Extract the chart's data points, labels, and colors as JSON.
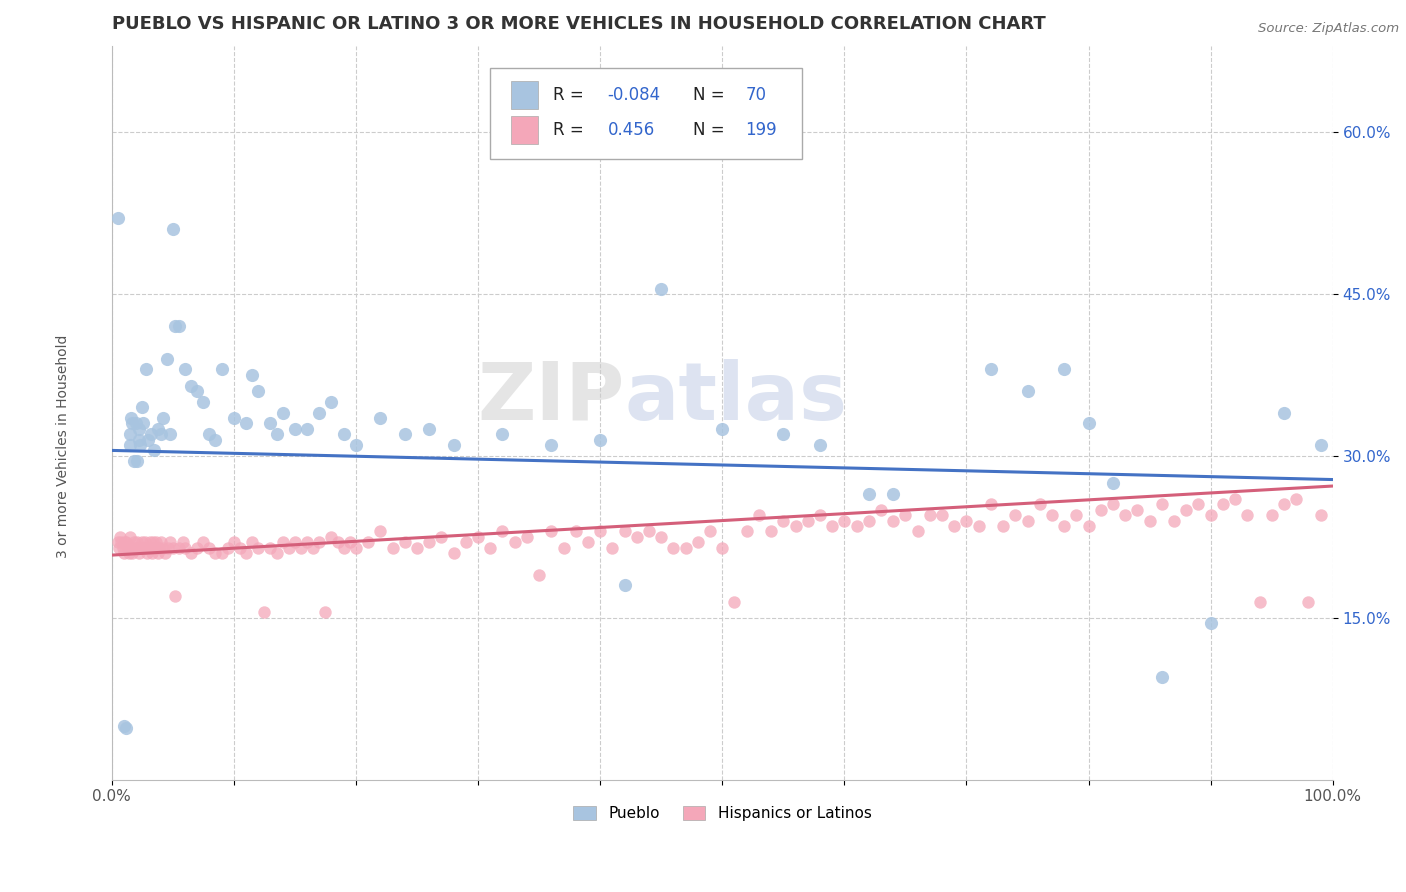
{
  "title": "PUEBLO VS HISPANIC OR LATINO 3 OR MORE VEHICLES IN HOUSEHOLD CORRELATION CHART",
  "source": "Source: ZipAtlas.com",
  "ylabel": "3 or more Vehicles in Household",
  "xlim": [
    0,
    1.0
  ],
  "ylim": [
    0.0,
    0.68
  ],
  "ytick_positions": [
    0.15,
    0.3,
    0.45,
    0.6
  ],
  "yticklabels": [
    "15.0%",
    "30.0%",
    "45.0%",
    "60.0%"
  ],
  "watermark_zip": "ZIP",
  "watermark_atlas": "atlas",
  "pueblo_color": "#a8c4e0",
  "hispanic_color": "#f4a7b9",
  "pueblo_line_color": "#4472c4",
  "hispanic_line_color": "#d45f7a",
  "blue_text_color": "#3366cc",
  "pueblo_scatter": [
    [
      0.005,
      0.52
    ],
    [
      0.01,
      0.05
    ],
    [
      0.012,
      0.048
    ],
    [
      0.015,
      0.32
    ],
    [
      0.015,
      0.31
    ],
    [
      0.016,
      0.335
    ],
    [
      0.017,
      0.33
    ],
    [
      0.018,
      0.295
    ],
    [
      0.02,
      0.33
    ],
    [
      0.021,
      0.295
    ],
    [
      0.022,
      0.315
    ],
    [
      0.022,
      0.325
    ],
    [
      0.023,
      0.31
    ],
    [
      0.025,
      0.345
    ],
    [
      0.026,
      0.33
    ],
    [
      0.028,
      0.38
    ],
    [
      0.03,
      0.315
    ],
    [
      0.032,
      0.32
    ],
    [
      0.035,
      0.305
    ],
    [
      0.038,
      0.325
    ],
    [
      0.04,
      0.32
    ],
    [
      0.042,
      0.335
    ],
    [
      0.045,
      0.39
    ],
    [
      0.048,
      0.32
    ],
    [
      0.05,
      0.51
    ],
    [
      0.052,
      0.42
    ],
    [
      0.055,
      0.42
    ],
    [
      0.06,
      0.38
    ],
    [
      0.065,
      0.365
    ],
    [
      0.07,
      0.36
    ],
    [
      0.075,
      0.35
    ],
    [
      0.08,
      0.32
    ],
    [
      0.085,
      0.315
    ],
    [
      0.09,
      0.38
    ],
    [
      0.1,
      0.335
    ],
    [
      0.11,
      0.33
    ],
    [
      0.115,
      0.375
    ],
    [
      0.12,
      0.36
    ],
    [
      0.13,
      0.33
    ],
    [
      0.135,
      0.32
    ],
    [
      0.14,
      0.34
    ],
    [
      0.15,
      0.325
    ],
    [
      0.16,
      0.325
    ],
    [
      0.17,
      0.34
    ],
    [
      0.18,
      0.35
    ],
    [
      0.19,
      0.32
    ],
    [
      0.2,
      0.31
    ],
    [
      0.22,
      0.335
    ],
    [
      0.24,
      0.32
    ],
    [
      0.26,
      0.325
    ],
    [
      0.28,
      0.31
    ],
    [
      0.32,
      0.32
    ],
    [
      0.36,
      0.31
    ],
    [
      0.4,
      0.315
    ],
    [
      0.42,
      0.18
    ],
    [
      0.45,
      0.455
    ],
    [
      0.5,
      0.325
    ],
    [
      0.55,
      0.32
    ],
    [
      0.58,
      0.31
    ],
    [
      0.62,
      0.265
    ],
    [
      0.64,
      0.265
    ],
    [
      0.72,
      0.38
    ],
    [
      0.75,
      0.36
    ],
    [
      0.78,
      0.38
    ],
    [
      0.8,
      0.33
    ],
    [
      0.82,
      0.275
    ],
    [
      0.86,
      0.095
    ],
    [
      0.9,
      0.145
    ],
    [
      0.96,
      0.34
    ],
    [
      0.99,
      0.31
    ]
  ],
  "hispanic_scatter": [
    [
      0.005,
      0.22
    ],
    [
      0.006,
      0.215
    ],
    [
      0.007,
      0.225
    ],
    [
      0.008,
      0.22
    ],
    [
      0.009,
      0.215
    ],
    [
      0.01,
      0.21
    ],
    [
      0.011,
      0.22
    ],
    [
      0.012,
      0.22
    ],
    [
      0.013,
      0.215
    ],
    [
      0.014,
      0.21
    ],
    [
      0.015,
      0.225
    ],
    [
      0.016,
      0.215
    ],
    [
      0.017,
      0.21
    ],
    [
      0.018,
      0.22
    ],
    [
      0.019,
      0.215
    ],
    [
      0.02,
      0.215
    ],
    [
      0.021,
      0.22
    ],
    [
      0.022,
      0.21
    ],
    [
      0.023,
      0.215
    ],
    [
      0.024,
      0.215
    ],
    [
      0.025,
      0.22
    ],
    [
      0.026,
      0.215
    ],
    [
      0.027,
      0.22
    ],
    [
      0.028,
      0.215
    ],
    [
      0.029,
      0.21
    ],
    [
      0.03,
      0.215
    ],
    [
      0.031,
      0.22
    ],
    [
      0.032,
      0.215
    ],
    [
      0.033,
      0.21
    ],
    [
      0.034,
      0.22
    ],
    [
      0.035,
      0.215
    ],
    [
      0.036,
      0.22
    ],
    [
      0.037,
      0.215
    ],
    [
      0.038,
      0.21
    ],
    [
      0.039,
      0.215
    ],
    [
      0.04,
      0.22
    ],
    [
      0.042,
      0.215
    ],
    [
      0.044,
      0.21
    ],
    [
      0.046,
      0.215
    ],
    [
      0.048,
      0.22
    ],
    [
      0.05,
      0.215
    ],
    [
      0.052,
      0.17
    ],
    [
      0.055,
      0.215
    ],
    [
      0.058,
      0.22
    ],
    [
      0.06,
      0.215
    ],
    [
      0.065,
      0.21
    ],
    [
      0.07,
      0.215
    ],
    [
      0.075,
      0.22
    ],
    [
      0.08,
      0.215
    ],
    [
      0.085,
      0.21
    ],
    [
      0.09,
      0.21
    ],
    [
      0.095,
      0.215
    ],
    [
      0.1,
      0.22
    ],
    [
      0.105,
      0.215
    ],
    [
      0.11,
      0.21
    ],
    [
      0.115,
      0.22
    ],
    [
      0.12,
      0.215
    ],
    [
      0.125,
      0.155
    ],
    [
      0.13,
      0.215
    ],
    [
      0.135,
      0.21
    ],
    [
      0.14,
      0.22
    ],
    [
      0.145,
      0.215
    ],
    [
      0.15,
      0.22
    ],
    [
      0.155,
      0.215
    ],
    [
      0.16,
      0.22
    ],
    [
      0.165,
      0.215
    ],
    [
      0.17,
      0.22
    ],
    [
      0.175,
      0.155
    ],
    [
      0.18,
      0.225
    ],
    [
      0.185,
      0.22
    ],
    [
      0.19,
      0.215
    ],
    [
      0.195,
      0.22
    ],
    [
      0.2,
      0.215
    ],
    [
      0.21,
      0.22
    ],
    [
      0.22,
      0.23
    ],
    [
      0.23,
      0.215
    ],
    [
      0.24,
      0.22
    ],
    [
      0.25,
      0.215
    ],
    [
      0.26,
      0.22
    ],
    [
      0.27,
      0.225
    ],
    [
      0.28,
      0.21
    ],
    [
      0.29,
      0.22
    ],
    [
      0.3,
      0.225
    ],
    [
      0.31,
      0.215
    ],
    [
      0.32,
      0.23
    ],
    [
      0.33,
      0.22
    ],
    [
      0.34,
      0.225
    ],
    [
      0.35,
      0.19
    ],
    [
      0.36,
      0.23
    ],
    [
      0.37,
      0.215
    ],
    [
      0.38,
      0.23
    ],
    [
      0.39,
      0.22
    ],
    [
      0.4,
      0.23
    ],
    [
      0.41,
      0.215
    ],
    [
      0.42,
      0.23
    ],
    [
      0.43,
      0.225
    ],
    [
      0.44,
      0.23
    ],
    [
      0.45,
      0.225
    ],
    [
      0.46,
      0.215
    ],
    [
      0.47,
      0.215
    ],
    [
      0.48,
      0.22
    ],
    [
      0.49,
      0.23
    ],
    [
      0.5,
      0.215
    ],
    [
      0.51,
      0.165
    ],
    [
      0.52,
      0.23
    ],
    [
      0.53,
      0.245
    ],
    [
      0.54,
      0.23
    ],
    [
      0.55,
      0.24
    ],
    [
      0.56,
      0.235
    ],
    [
      0.57,
      0.24
    ],
    [
      0.58,
      0.245
    ],
    [
      0.59,
      0.235
    ],
    [
      0.6,
      0.24
    ],
    [
      0.61,
      0.235
    ],
    [
      0.62,
      0.24
    ],
    [
      0.63,
      0.25
    ],
    [
      0.64,
      0.24
    ],
    [
      0.65,
      0.245
    ],
    [
      0.66,
      0.23
    ],
    [
      0.67,
      0.245
    ],
    [
      0.68,
      0.245
    ],
    [
      0.69,
      0.235
    ],
    [
      0.7,
      0.24
    ],
    [
      0.71,
      0.235
    ],
    [
      0.72,
      0.255
    ],
    [
      0.73,
      0.235
    ],
    [
      0.74,
      0.245
    ],
    [
      0.75,
      0.24
    ],
    [
      0.76,
      0.255
    ],
    [
      0.77,
      0.245
    ],
    [
      0.78,
      0.235
    ],
    [
      0.79,
      0.245
    ],
    [
      0.8,
      0.235
    ],
    [
      0.81,
      0.25
    ],
    [
      0.82,
      0.255
    ],
    [
      0.83,
      0.245
    ],
    [
      0.84,
      0.25
    ],
    [
      0.85,
      0.24
    ],
    [
      0.86,
      0.255
    ],
    [
      0.87,
      0.24
    ],
    [
      0.88,
      0.25
    ],
    [
      0.89,
      0.255
    ],
    [
      0.9,
      0.245
    ],
    [
      0.91,
      0.255
    ],
    [
      0.92,
      0.26
    ],
    [
      0.93,
      0.245
    ],
    [
      0.94,
      0.165
    ],
    [
      0.95,
      0.245
    ],
    [
      0.96,
      0.255
    ],
    [
      0.97,
      0.26
    ],
    [
      0.98,
      0.165
    ],
    [
      0.99,
      0.245
    ]
  ]
}
